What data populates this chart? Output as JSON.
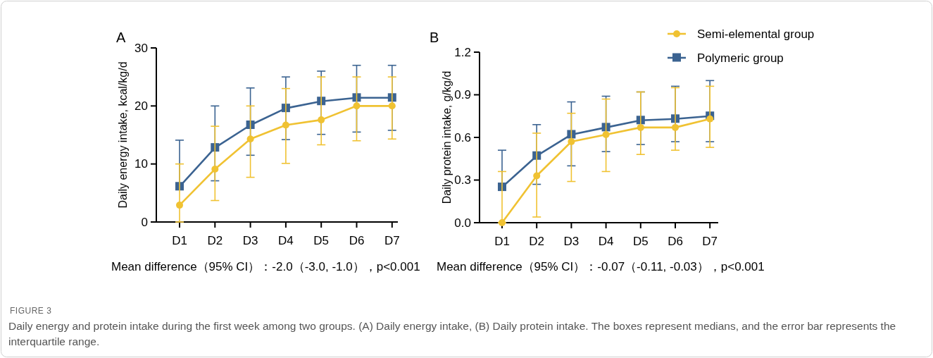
{
  "chart_data": [
    {
      "type": "line",
      "title": "A",
      "ylabel": "Daily energy intake, kcal/kg/d",
      "categories": [
        "D1",
        "D2",
        "D3",
        "D4",
        "D5",
        "D6",
        "D7"
      ],
      "ylim": [
        0,
        30
      ],
      "yticks": [
        0,
        10,
        20,
        30
      ],
      "grid": false,
      "series": [
        {
          "color": "#3b6391",
          "marker": "square",
          "values": [
            6.1,
            12.8,
            16.7,
            19.6,
            20.8,
            21.4,
            21.4
          ],
          "errors": [
            [
              6.1,
              14.1
            ],
            [
              7.1,
              20
            ],
            [
              11.5,
              23.1
            ],
            [
              14.2,
              25
            ],
            [
              15.1,
              26
            ],
            [
              15.5,
              27
            ],
            [
              15.8,
              27
            ]
          ]
        },
        {
          "color": "#f0c232",
          "marker": "circle",
          "values": [
            2.9,
            9.1,
            14.3,
            16.7,
            17.6,
            20,
            20
          ],
          "errors": [
            [
              0,
              10
            ],
            [
              3.7,
              16.5
            ],
            [
              7.7,
              20
            ],
            [
              10.1,
              23
            ],
            [
              13.3,
              25
            ],
            [
              14,
              25
            ],
            [
              14.3,
              25
            ]
          ]
        }
      ],
      "annotations": [
        "Mean difference（95% CI）：-2.0（-3.0, -1.0），p<0.001",
        "FIGURE 3",
        "Daily energy and protein intake during the first week among two groups. (A) Daily energy intake, (B) Daily protein intake. The boxes represent medians, and the error bar represents the interquartile range."
      ]
    },
    {
      "type": "line",
      "title": "B",
      "ylabel": "Daily protein intake, g/kg/d",
      "categories": [
        "D1",
        "D2",
        "D3",
        "D4",
        "D5",
        "D6",
        "D7"
      ],
      "ylim": [
        0,
        1.2
      ],
      "yticks": [
        {
          "value": 0,
          "label": "0.0"
        },
        0.3,
        0.6,
        0.9,
        1.2
      ],
      "grid": false,
      "legend": "top right",
      "series": [
        {
          "name": "Polymeric group",
          "color": "#3b6391",
          "marker": "square",
          "values": [
            0.25,
            0.47,
            0.62,
            0.67,
            0.72,
            0.73,
            0.75
          ],
          "errors": [
            [
              0.25,
              0.51
            ],
            [
              0.27,
              0.69
            ],
            [
              0.4,
              0.85
            ],
            [
              0.5,
              0.89
            ],
            [
              0.55,
              0.92
            ],
            [
              0.57,
              0.96
            ],
            [
              0.57,
              1.0
            ]
          ]
        },
        {
          "name": "Semi-elemental group",
          "color": "#f0c232",
          "marker": "circle",
          "values": [
            0,
            0.33,
            0.57,
            0.62,
            0.67,
            0.67,
            0.73
          ],
          "errors": [
            [
              0,
              0.36
            ],
            [
              0.04,
              0.63
            ],
            [
              0.29,
              0.77
            ],
            [
              0.36,
              0.87
            ],
            [
              0.48,
              0.92
            ],
            [
              0.51,
              0.95
            ],
            [
              0.53,
              0.96
            ]
          ]
        }
      ],
      "annotations": [
        "Mean difference（95% CI）：-0.07（-0.11, -0.03），p<0.001"
      ]
    }
  ]
}
